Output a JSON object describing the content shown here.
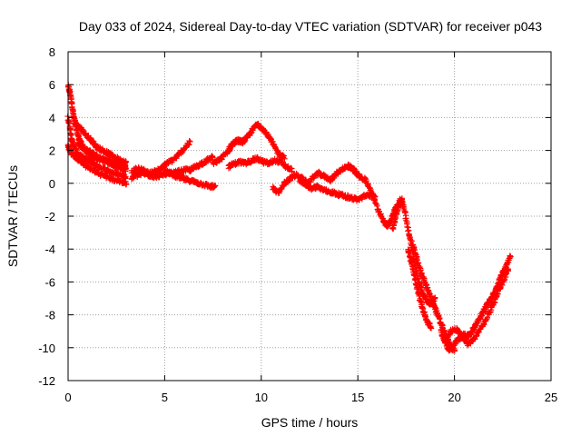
{
  "chart_data": {
    "type": "scatter",
    "title": "Day 033 of 2024, Sidereal Day-to-day VTEC variation (SDTVAR) for receiver p043",
    "xlabel": "GPS time / hours",
    "ylabel": "SDTVAR / TECUs",
    "xlim": [
      0,
      25
    ],
    "ylim": [
      -12,
      8
    ],
    "xticks": [
      0,
      5,
      10,
      15,
      20,
      25
    ],
    "yticks": [
      -12,
      -10,
      -8,
      -6,
      -4,
      -2,
      0,
      2,
      4,
      6,
      8
    ],
    "xtick_labels": [
      "0",
      "5",
      "10",
      "15",
      "20",
      "25"
    ],
    "ytick_labels": [
      "-12",
      "-10",
      "-8",
      "-6",
      "-4",
      "-2",
      "0",
      "2",
      "4",
      "6",
      "8"
    ],
    "grid": true,
    "marker": "+",
    "series": [
      {
        "name": "SDTVAR",
        "color": "#ff0000",
        "tracks": [
          {
            "x": [
              0.0,
              0.1,
              0.2,
              0.3,
              0.4,
              0.5,
              0.6,
              0.8,
              1.0,
              1.2,
              1.5,
              1.8,
              2.0,
              2.3,
              2.5,
              2.8,
              3.0
            ],
            "y": [
              5.9,
              5.5,
              4.8,
              4.0,
              3.5,
              3.0,
              2.6,
              2.2,
              1.8,
              1.6,
              1.5,
              1.4,
              1.4,
              1.3,
              1.2,
              1.1,
              1.0
            ]
          },
          {
            "x": [
              0.0,
              0.1,
              0.2,
              0.3,
              0.5,
              0.7,
              1.0,
              1.3,
              1.6,
              2.0,
              2.4,
              2.8,
              3.0
            ],
            "y": [
              4.0,
              3.3,
              2.6,
              2.2,
              1.8,
              1.6,
              1.4,
              1.2,
              1.0,
              0.8,
              0.6,
              0.5,
              0.4
            ]
          },
          {
            "x": [
              0.0,
              0.1,
              0.2,
              0.4,
              0.6,
              0.8,
              1.0,
              1.3,
              1.6,
              2.0,
              2.4,
              2.8,
              3.0
            ],
            "y": [
              2.3,
              2.0,
              1.8,
              1.6,
              1.4,
              1.2,
              1.0,
              0.8,
              0.6,
              0.4,
              0.2,
              0.1,
              0.0
            ]
          },
          {
            "x": [
              0.3,
              0.6,
              0.9,
              1.2,
              1.5,
              1.8,
              2.1,
              2.4,
              2.7,
              3.0
            ],
            "y": [
              3.7,
              3.4,
              3.0,
              2.6,
              2.2,
              2.0,
              1.8,
              1.6,
              1.4,
              1.3
            ]
          },
          {
            "x": [
              0.5,
              0.7,
              1.0,
              1.3,
              1.6,
              1.9,
              2.2,
              2.5,
              2.8,
              3.0
            ],
            "y": [
              2.4,
              2.2,
              2.0,
              1.8,
              1.6,
              1.4,
              1.2,
              1.0,
              0.9,
              0.8
            ]
          },
          {
            "x": [
              3.3,
              3.6,
              3.9,
              4.2,
              4.5,
              4.8,
              5.1,
              5.4,
              5.7,
              6.0,
              6.3
            ],
            "y": [
              0.7,
              0.9,
              0.8,
              0.6,
              0.7,
              0.9,
              1.2,
              1.4,
              1.7,
              2.1,
              2.5
            ]
          },
          {
            "x": [
              3.3,
              3.6,
              3.9,
              4.2,
              4.5,
              4.8,
              5.1,
              5.4,
              5.7,
              6.0,
              6.3,
              6.6,
              6.9,
              7.2,
              7.5
            ],
            "y": [
              0.3,
              0.5,
              0.6,
              0.5,
              0.4,
              0.5,
              0.6,
              0.6,
              0.7,
              0.8,
              0.8,
              1.0,
              1.2,
              1.4,
              1.6
            ]
          },
          {
            "x": [
              5.0,
              5.3,
              5.6,
              5.9,
              6.2,
              6.5,
              6.8,
              7.1,
              7.4,
              7.6
            ],
            "y": [
              0.8,
              0.6,
              0.4,
              0.3,
              0.2,
              0.1,
              0.0,
              -0.1,
              -0.2,
              -0.2
            ]
          },
          {
            "x": [
              7.5,
              7.8,
              8.0,
              8.3,
              8.5,
              8.8,
              9.0,
              9.3,
              9.5,
              9.8,
              10.0,
              10.3,
              10.6,
              10.9,
              11.2
            ],
            "y": [
              1.2,
              1.4,
              1.6,
              2.0,
              2.4,
              2.6,
              2.5,
              2.8,
              3.2,
              3.6,
              3.4,
              3.0,
              2.4,
              1.8,
              1.6
            ]
          },
          {
            "x": [
              8.3,
              8.6,
              8.9,
              9.2,
              9.5,
              9.8,
              10.1,
              10.4,
              10.7,
              11.0,
              11.3,
              11.6
            ],
            "y": [
              1.0,
              1.2,
              1.3,
              1.2,
              1.4,
              1.5,
              1.3,
              1.2,
              1.4,
              1.3,
              1.0,
              0.8
            ]
          },
          {
            "x": [
              10.6,
              10.9,
              11.2,
              11.5,
              11.8,
              12.1,
              12.4,
              12.7,
              13.0,
              13.3,
              13.6,
              13.9,
              14.2,
              14.5,
              14.8,
              15.0
            ],
            "y": [
              -0.3,
              -0.6,
              0.0,
              0.3,
              0.5,
              0.3,
              0.0,
              0.4,
              0.6,
              0.4,
              0.2,
              0.6,
              0.9,
              1.0,
              0.8,
              0.5
            ]
          },
          {
            "x": [
              12.0,
              12.3,
              12.6,
              12.9,
              13.2,
              13.5,
              13.8,
              14.1,
              14.4,
              14.7,
              15.0,
              15.3,
              15.6,
              15.9
            ],
            "y": [
              0.2,
              -0.1,
              -0.3,
              -0.2,
              -0.4,
              -0.5,
              -0.6,
              -0.7,
              -0.8,
              -0.9,
              -1.0,
              -0.8,
              -0.7,
              -0.9
            ]
          },
          {
            "x": [
              14.5,
              14.8,
              15.1,
              15.4,
              15.7,
              16.0,
              16.3,
              16.5,
              16.7,
              16.9,
              17.1,
              17.3
            ],
            "y": [
              1.1,
              0.8,
              0.4,
              0.2,
              -0.5,
              -1.5,
              -2.2,
              -2.6,
              -2.3,
              -1.6,
              -1.3,
              -1.0
            ]
          },
          {
            "x": [
              16.8,
              17.0,
              17.2,
              17.4,
              17.6,
              17.8,
              18.0,
              18.2,
              18.4,
              18.6,
              18.8,
              19.0
            ],
            "y": [
              -2.8,
              -1.9,
              -1.0,
              -1.5,
              -2.8,
              -4.0,
              -5.2,
              -6.2,
              -6.8,
              -7.2,
              -7.3,
              -7.0
            ]
          },
          {
            "x": [
              17.6,
              17.8,
              18.0,
              18.2,
              18.4,
              18.6,
              18.8
            ],
            "y": [
              -4.0,
              -5.0,
              -6.0,
              -7.0,
              -7.8,
              -8.4,
              -8.8
            ]
          },
          {
            "x": [
              17.8,
              18.0,
              18.2,
              18.4,
              18.6,
              18.8,
              19.0,
              19.2,
              19.4,
              19.6,
              19.8,
              20.0
            ],
            "y": [
              -3.6,
              -4.4,
              -5.2,
              -5.8,
              -6.4,
              -7.0,
              -7.6,
              -8.2,
              -8.8,
              -9.4,
              -9.9,
              -10.2
            ]
          },
          {
            "x": [
              19.3,
              19.5,
              19.7,
              19.9,
              20.1,
              20.3,
              20.5,
              20.7,
              20.9,
              21.1,
              21.3,
              21.5,
              21.7,
              21.9,
              22.1,
              22.3,
              22.5,
              22.7,
              22.9
            ],
            "y": [
              -9.0,
              -9.6,
              -10.1,
              -10.0,
              -9.6,
              -9.4,
              -9.2,
              -9.3,
              -9.0,
              -8.6,
              -8.2,
              -7.8,
              -7.4,
              -7.0,
              -6.6,
              -6.0,
              -5.4,
              -5.0,
              -4.4
            ]
          },
          {
            "x": [
              19.5,
              19.8,
              20.1,
              20.4,
              20.7,
              21.0,
              21.3,
              21.6,
              21.9,
              22.2,
              22.5,
              22.8
            ],
            "y": [
              -9.6,
              -9.0,
              -8.9,
              -9.3,
              -9.8,
              -9.5,
              -8.9,
              -8.4,
              -7.6,
              -6.8,
              -6.0,
              -5.2
            ]
          }
        ]
      }
    ]
  }
}
